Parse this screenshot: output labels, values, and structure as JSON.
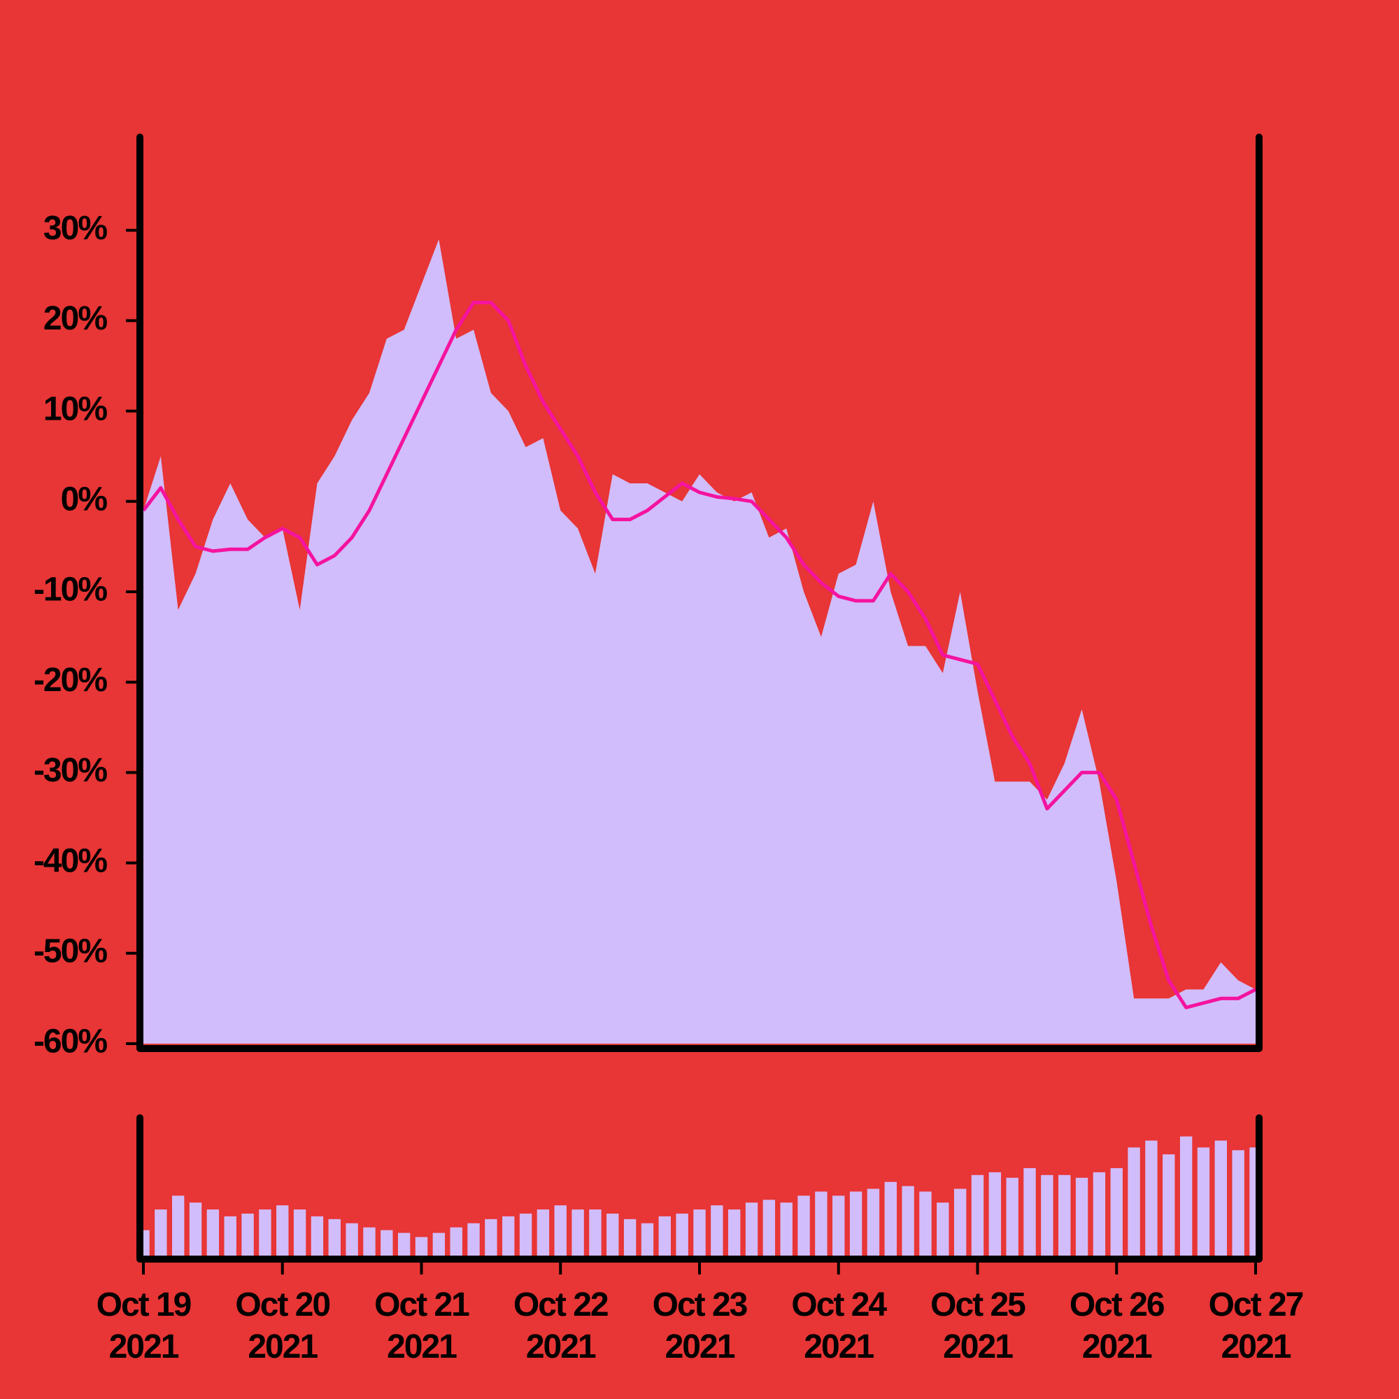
{
  "chart_data": [
    {
      "type": "area",
      "series": [
        {
          "type": "area",
          "color": "#d1bdfc",
          "values": [
            -1,
            5,
            -12,
            -8,
            -2,
            2,
            -2,
            -4,
            -3,
            -12,
            2,
            5,
            9,
            12,
            18,
            19,
            24,
            29,
            18,
            19,
            12,
            10,
            6,
            7,
            -1,
            -3,
            -8,
            3,
            2,
            2,
            1,
            0,
            3,
            1,
            0,
            1,
            -4,
            -3,
            -10,
            -15,
            -8,
            -7,
            0,
            -10,
            -16,
            -16,
            -19,
            -10,
            -21,
            -31,
            -31,
            -31,
            -33,
            -29,
            -23,
            -31,
            -42,
            -55,
            -55,
            -55,
            -54,
            -54,
            -51,
            -53,
            -54
          ]
        },
        {
          "type": "line",
          "color": "#f5139f",
          "values": [
            -1,
            1.5,
            -2,
            -5,
            -5.5,
            -5.3,
            -5.3,
            -4,
            -3,
            -4,
            -7,
            -6,
            -4,
            -1,
            3,
            7,
            11,
            15,
            19,
            22,
            22,
            20,
            15,
            11,
            8,
            5,
            1,
            -2,
            -2,
            -1,
            0.5,
            2,
            1,
            0.5,
            0.3,
            0,
            -2,
            -4,
            -7,
            -9,
            -10.5,
            -11,
            -11,
            -8,
            -10,
            -13,
            -17,
            -17.5,
            -18,
            -22,
            -26,
            -29,
            -34,
            -32,
            -30,
            -30,
            -33,
            -40,
            -47,
            -53,
            -56,
            -55.5,
            -55,
            -55,
            -54
          ]
        }
      ],
      "ylim": [
        -60,
        40
      ],
      "yticks": [
        {
          "value": -60,
          "label": "-60%"
        },
        {
          "value": -50,
          "label": "-50%"
        },
        {
          "value": -40,
          "label": "-40%"
        },
        {
          "value": -30,
          "label": "-30%"
        },
        {
          "value": -20,
          "label": "-20%"
        },
        {
          "value": -10,
          "label": "-10%"
        },
        {
          "value": 0,
          "label": "0%"
        },
        {
          "value": 10,
          "label": "10%"
        },
        {
          "value": 20,
          "label": "20%"
        },
        {
          "value": 30,
          "label": "30%"
        }
      ]
    },
    {
      "type": "bar",
      "color": "#d1bdfc",
      "values": [
        20,
        35,
        45,
        40,
        35,
        30,
        32,
        35,
        38,
        35,
        30,
        28,
        25,
        22,
        20,
        18,
        15,
        18,
        22,
        25,
        28,
        30,
        32,
        35,
        38,
        35,
        35,
        32,
        28,
        25,
        30,
        32,
        35,
        38,
        35,
        40,
        42,
        40,
        45,
        48,
        45,
        48,
        50,
        55,
        52,
        48,
        40,
        50,
        60,
        62,
        58,
        65,
        60,
        60,
        58,
        62,
        65,
        80,
        85,
        75,
        88,
        80,
        85,
        78,
        80
      ],
      "ylim": [
        0,
        100
      ],
      "xlim": [
        0,
        64
      ],
      "xticks": [
        {
          "value": 0,
          "label": "Oct 19 2021"
        },
        {
          "value": 8,
          "label": "Oct 20 2021"
        },
        {
          "value": 16,
          "label": "Oct 21 2021"
        },
        {
          "value": 24,
          "label": "Oct 22 2021"
        },
        {
          "value": 32,
          "label": "Oct 23 2021"
        },
        {
          "value": 40,
          "label": "Oct 24 2021"
        },
        {
          "value": 48,
          "label": "Oct 25 2021"
        },
        {
          "value": 56,
          "label": "Oct 26 2021"
        },
        {
          "value": 64,
          "label": "Oct 27 2021"
        }
      ]
    }
  ]
}
